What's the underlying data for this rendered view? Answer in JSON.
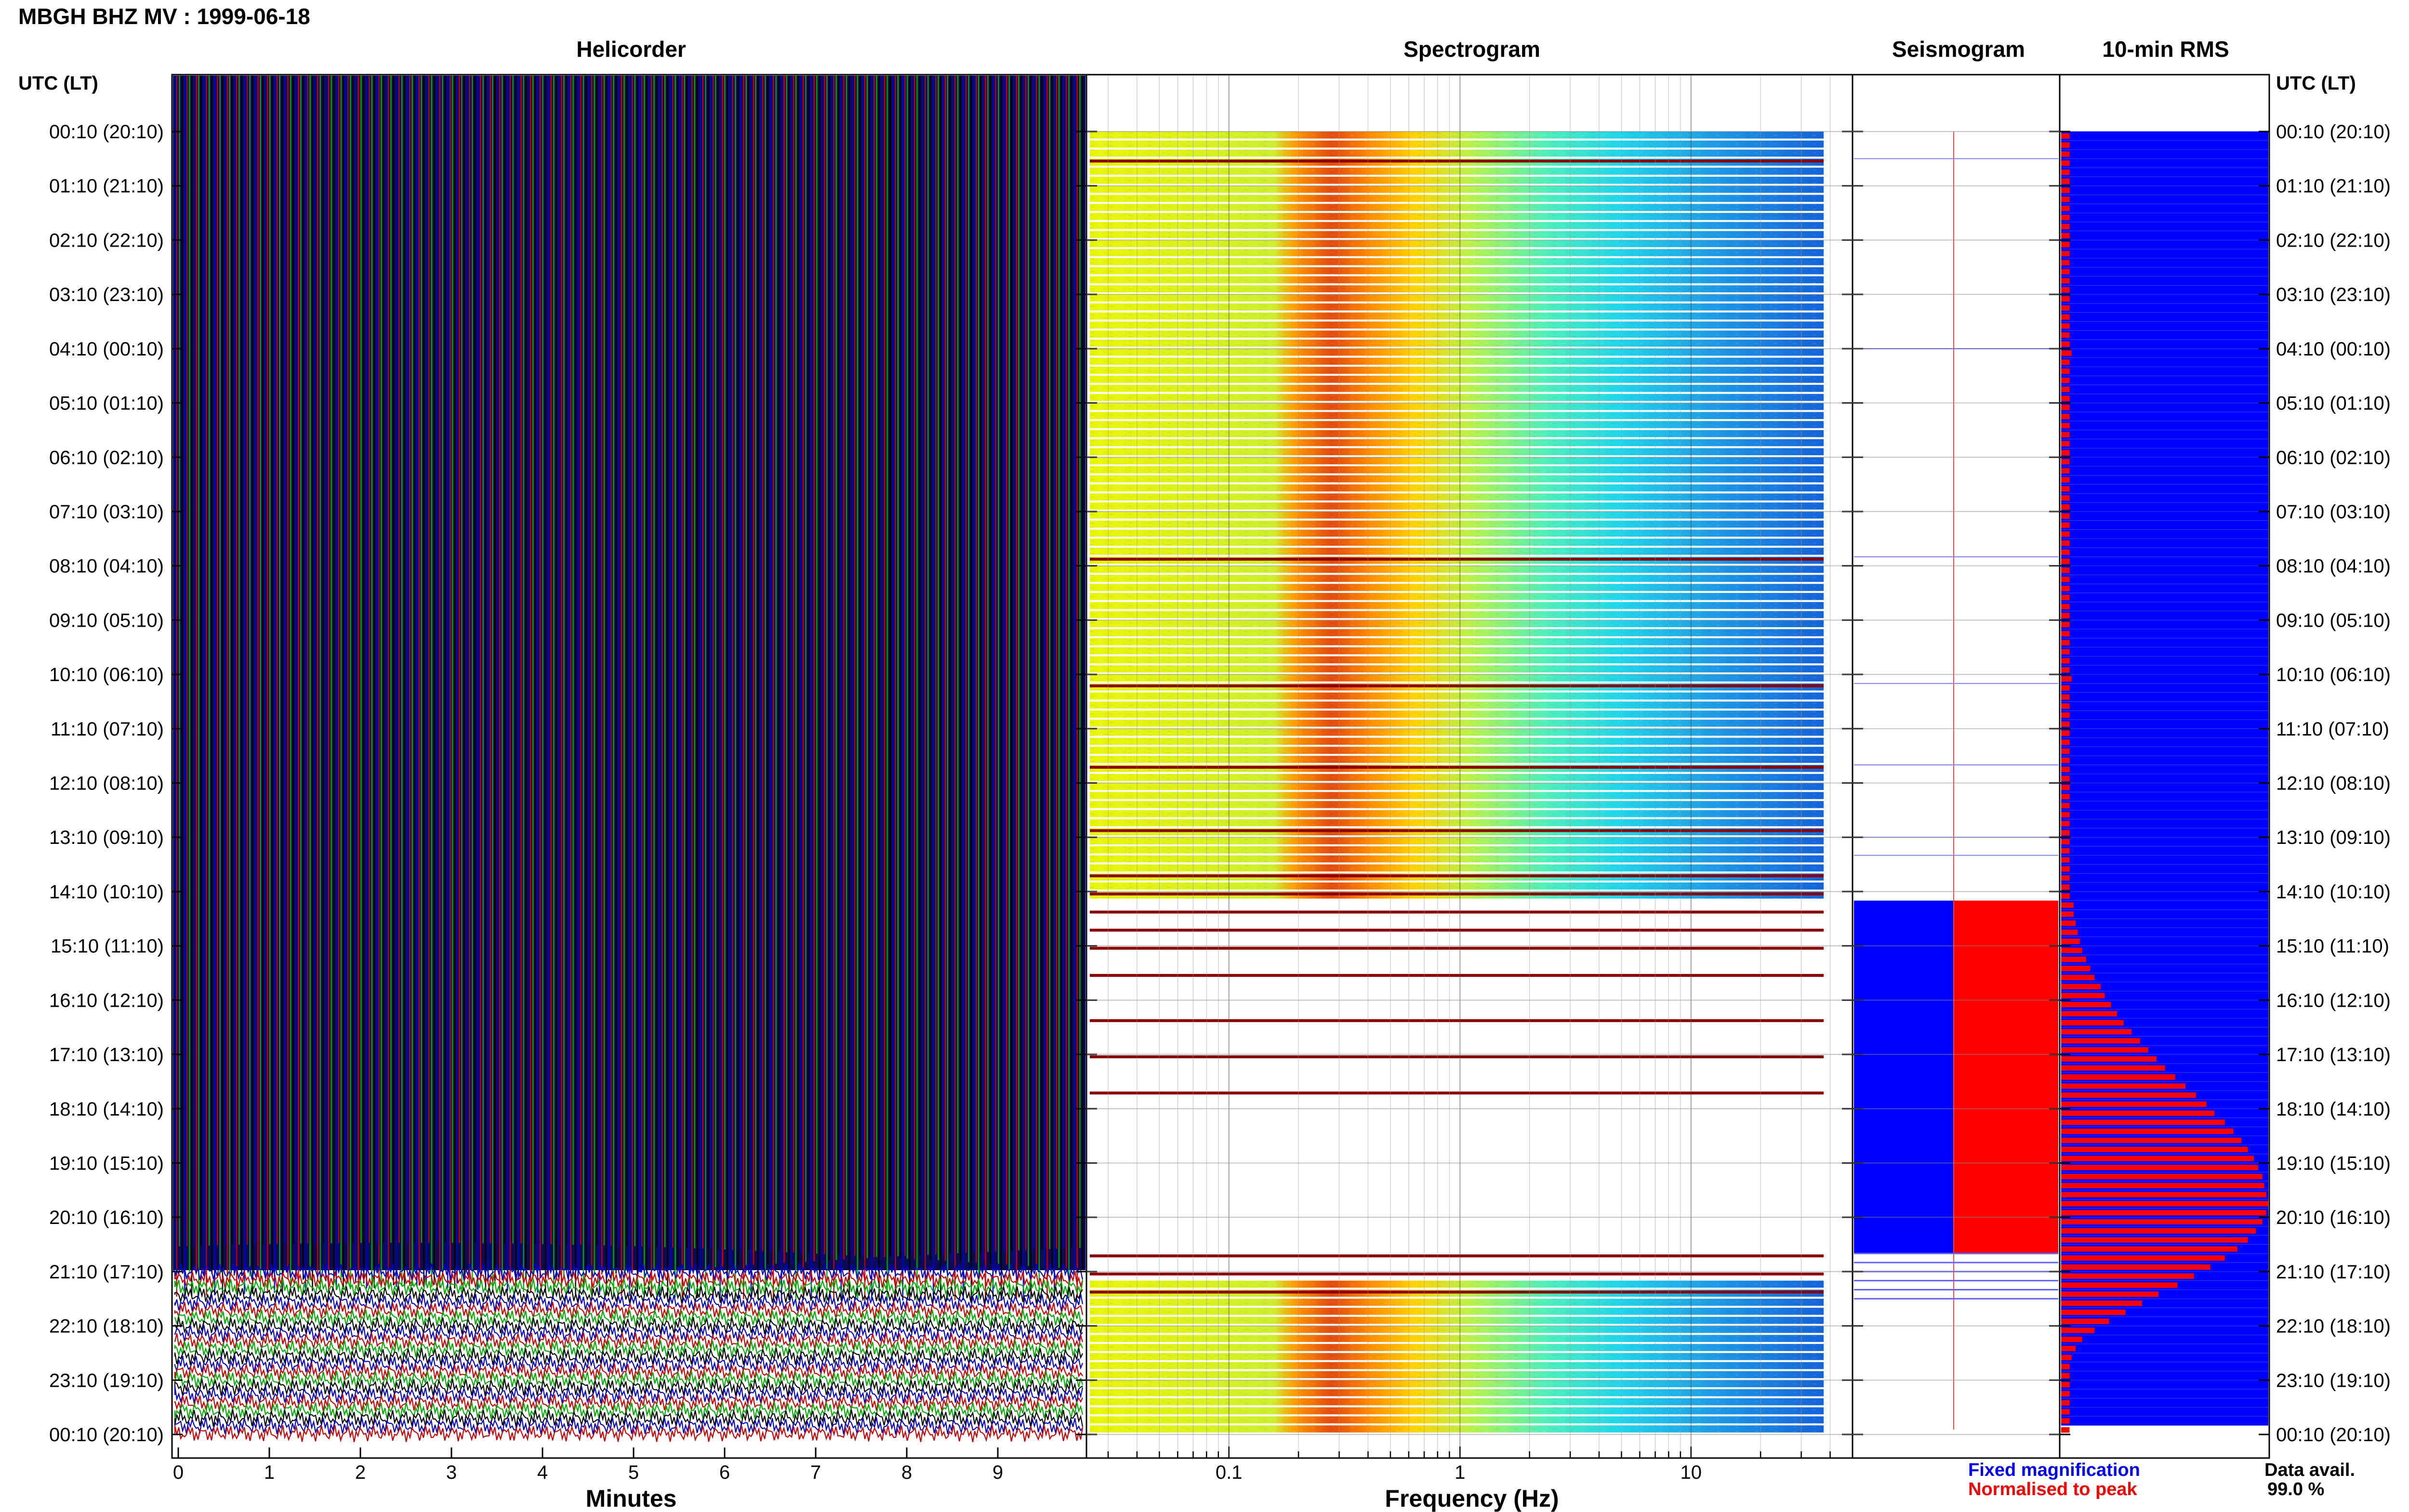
{
  "page_title": "MBGH BHZ MV : 1999-06-18",
  "panels": {
    "helicorder": "Helicorder",
    "spectrogram": "Spectrogram",
    "seismogram": "Seismogram",
    "rms": "10-min RMS"
  },
  "time_axis": {
    "header": "UTC (LT)",
    "labels": [
      "00:10 (20:10)",
      "01:10 (21:10)",
      "02:10 (22:10)",
      "03:10 (23:10)",
      "04:10 (00:10)",
      "05:10 (01:10)",
      "06:10 (02:10)",
      "07:10 (03:10)",
      "08:10 (04:10)",
      "09:10 (05:10)",
      "10:10 (06:10)",
      "11:10 (07:10)",
      "12:10 (08:10)",
      "13:10 (09:10)",
      "14:10 (10:10)",
      "15:10 (11:10)",
      "16:10 (12:10)",
      "17:10 (13:10)",
      "18:10 (14:10)",
      "19:10 (15:10)",
      "20:10 (16:10)",
      "21:10 (17:10)",
      "22:10 (18:10)",
      "23:10 (19:10)",
      "00:10 (20:10)"
    ]
  },
  "helicorder_axis": {
    "xlabel": "Minutes",
    "ticks": [
      "0",
      "1",
      "2",
      "3",
      "4",
      "5",
      "6",
      "7",
      "8",
      "9"
    ],
    "xlim": [
      0,
      10
    ],
    "trace_colors": [
      "#0000cc",
      "#cc0000",
      "#00aa00",
      "#000000"
    ]
  },
  "spectrogram_axis": {
    "xlabel": "Frequency (Hz)",
    "ticks": [
      "0.1",
      "1",
      "10"
    ],
    "tick_values": [
      0.1,
      1,
      10
    ],
    "xlim": [
      0.025,
      50
    ],
    "scale": "log"
  },
  "legend": {
    "fixed": "Fixed magnification",
    "fixed_color": "#0000ff",
    "normalised": "Normalised to peak",
    "normalised_color": "#ff0000"
  },
  "availability": {
    "label": "Data avail.",
    "value": "99.0 %"
  },
  "chart_data": [
    {
      "type": "bar",
      "title": "10-min RMS",
      "orientation": "horizontal",
      "x_label": "",
      "y_label": "UTC (LT)",
      "ylim_hours_utc": [
        0.1667,
        24.1667
      ],
      "series": [
        {
          "name": "Fixed magnification",
          "color": "#0000ff",
          "description_values": "relative RMS per 10-min window, 144 windows; values read as fraction of panel width",
          "values": [
            0.04,
            0.04,
            0.04,
            0.04,
            0.04,
            0.04,
            0.04,
            0.04,
            0.04,
            0.04,
            0.04,
            0.04,
            0.04,
            0.04,
            0.04,
            0.04,
            0.04,
            0.04,
            0.04,
            0.04,
            0.04,
            0.04,
            0.04,
            0.04,
            0.05,
            0.04,
            0.04,
            0.04,
            0.04,
            0.04,
            0.04,
            0.04,
            0.04,
            0.04,
            0.04,
            0.04,
            0.04,
            0.04,
            0.04,
            0.04,
            0.04,
            0.04,
            0.04,
            0.04,
            0.04,
            0.04,
            0.04,
            0.04,
            0.04,
            0.04,
            0.04,
            0.04,
            0.04,
            0.04,
            0.04,
            0.04,
            0.04,
            0.04,
            0.04,
            0.04,
            0.05,
            0.04,
            0.04,
            0.04,
            0.04,
            0.04,
            0.04,
            0.04,
            0.04,
            0.04,
            0.04,
            0.04,
            0.04,
            0.04,
            0.04,
            0.04,
            0.04,
            0.04,
            0.04,
            0.04,
            0.04,
            0.04,
            0.04,
            0.04,
            0.04,
            0.06,
            0.06,
            0.07,
            0.08,
            0.09,
            0.1,
            0.12,
            0.14,
            0.16,
            0.19,
            0.21,
            0.24,
            0.27,
            0.3,
            0.34,
            0.38,
            0.42,
            0.46,
            0.5,
            0.55,
            0.6,
            0.65,
            0.7,
            0.74,
            0.79,
            0.83,
            0.87,
            0.9,
            0.93,
            0.95,
            0.97,
            0.98,
            0.99,
            1.0,
            0.99,
            0.97,
            0.94,
            0.9,
            0.85,
            0.79,
            0.72,
            0.64,
            0.56,
            0.47,
            0.39,
            0.31,
            0.23,
            0.16,
            0.1,
            0.07,
            0.05,
            0.04,
            0.04,
            0.04,
            0.04,
            0.04,
            0.04,
            0.04,
            0.04
          ]
        }
      ],
      "availability_pct": 99.0
    },
    {
      "type": "heatmap",
      "title": "Spectrogram",
      "x_label": "Frequency (Hz)",
      "x_scale": "log",
      "x_ticks": [
        0.1,
        1,
        10
      ],
      "xlim": [
        0.025,
        50
      ],
      "y_label": "UTC (LT)",
      "colormap": "jet",
      "peak_band_hz": [
        0.2,
        0.8
      ]
    },
    {
      "type": "line",
      "title": "Helicorder",
      "x_label": "Minutes",
      "x_ticks": [
        0,
        1,
        2,
        3,
        4,
        5,
        6,
        7,
        8,
        9
      ],
      "xlim": [
        0,
        10
      ],
      "y_label": "UTC (LT)"
    }
  ]
}
